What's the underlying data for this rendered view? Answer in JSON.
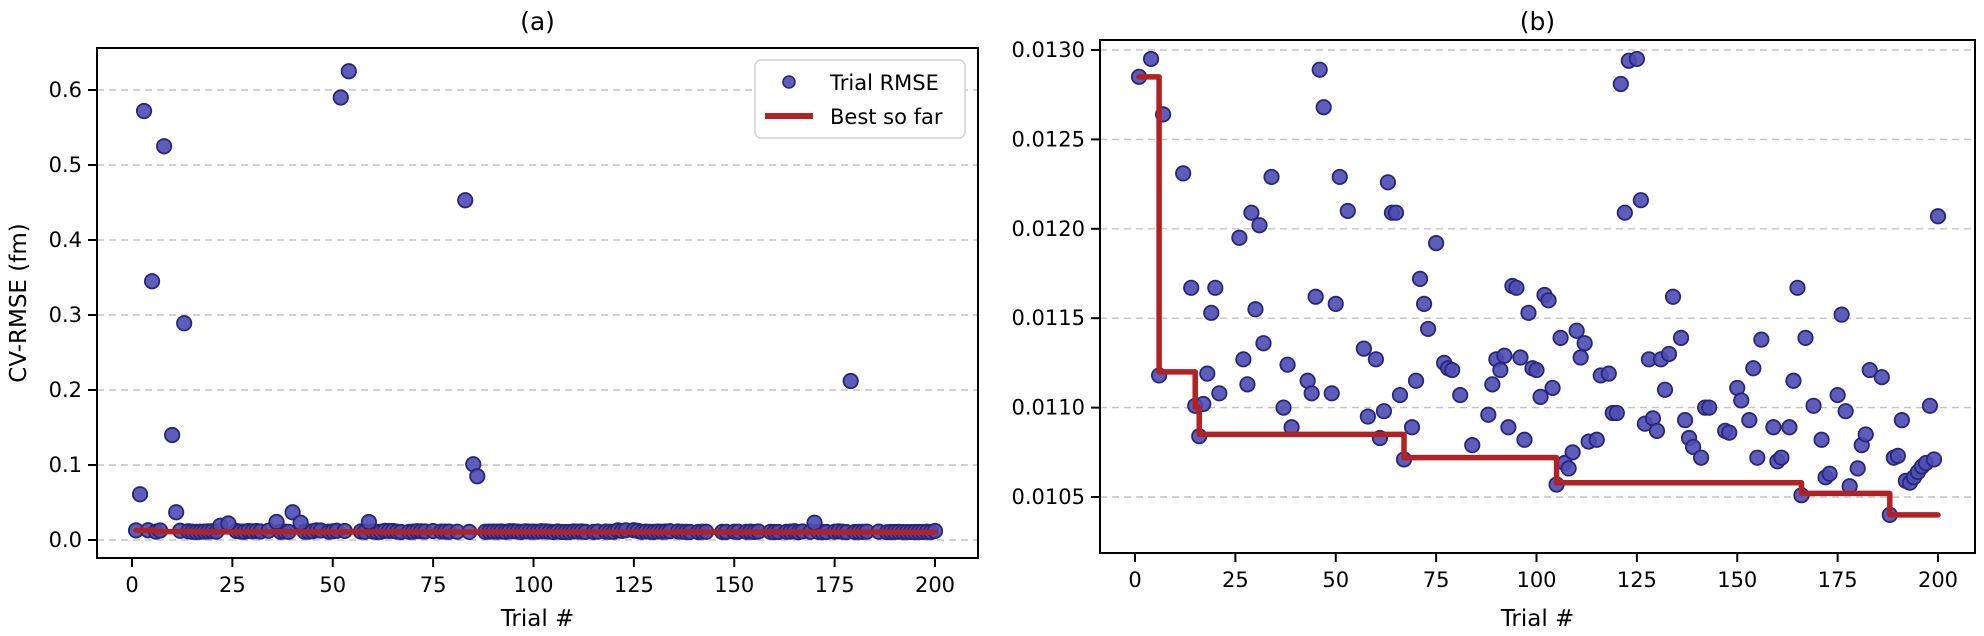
{
  "figure": {
    "background": "#ffffff",
    "legend": {
      "entries": [
        {
          "label": "Trial RMSE",
          "marker": "circle"
        },
        {
          "label": "Best so far",
          "marker": "line"
        }
      ],
      "position": "upper right"
    },
    "colors": {
      "scatter_fill": "#4d4db2",
      "scatter_edge": "#26267f",
      "best_line": "#b22222",
      "grid": "#c4c4c4",
      "spine": "#000000",
      "legend_border": "#d2d2d2",
      "legend_bg": "#ffffff"
    }
  },
  "chart_data": [
    {
      "id": "a",
      "type": "scatter",
      "title": "(a)",
      "xlabel": "Trial #",
      "ylabel": "CV-RMSE (fm)",
      "xlim": [
        -9,
        210
      ],
      "ylim": [
        -0.024,
        0.656
      ],
      "x_tick_values": [
        0,
        25,
        50,
        75,
        100,
        125,
        150,
        175,
        200
      ],
      "x_tick_labels": [
        "0",
        "25",
        "50",
        "75",
        "100",
        "125",
        "150",
        "175",
        "200"
      ],
      "y_tick_values": [
        0.0,
        0.1,
        0.2,
        0.3,
        0.4,
        0.5,
        0.6
      ],
      "y_tick_labels": [
        "0.0",
        "0.1",
        "0.2",
        "0.3",
        "0.4",
        "0.5",
        "0.6"
      ],
      "grid": "horizontal-dashed",
      "legend_visible": true,
      "note": "shows every trial: all points of panel b plus these larger-RMSE outliers",
      "outlier_points": [
        [
          2,
          0.061
        ],
        [
          3,
          0.572
        ],
        [
          5,
          0.345
        ],
        [
          8,
          0.525
        ],
        [
          10,
          0.14
        ],
        [
          11,
          0.037
        ],
        [
          13,
          0.289
        ],
        [
          22,
          0.019
        ],
        [
          24,
          0.022
        ],
        [
          36,
          0.024
        ],
        [
          40,
          0.037
        ],
        [
          42,
          0.023
        ],
        [
          52,
          0.59
        ],
        [
          54,
          0.625
        ],
        [
          59,
          0.024
        ],
        [
          83,
          0.453
        ],
        [
          85,
          0.101
        ],
        [
          86,
          0.085
        ],
        [
          170,
          0.023
        ],
        [
          179,
          0.212
        ]
      ]
    },
    {
      "id": "b",
      "type": "scatter",
      "title": "(b)",
      "xlabel": "Trial #",
      "ylabel": "",
      "xlim": [
        -9,
        210
      ],
      "ylim": [
        0.010187,
        0.013056
      ],
      "x_tick_values": [
        0,
        25,
        50,
        75,
        100,
        125,
        150,
        175,
        200
      ],
      "x_tick_labels": [
        "0",
        "25",
        "50",
        "75",
        "100",
        "125",
        "150",
        "175",
        "200"
      ],
      "y_tick_values": [
        0.0105,
        0.011,
        0.0115,
        0.012,
        0.0125,
        0.013
      ],
      "y_tick_labels": [
        "0.0105",
        "0.0110",
        "0.0115",
        "0.0120",
        "0.0125",
        "0.0130"
      ],
      "grid": "horizontal-dashed",
      "legend_visible": false,
      "trial_points": [
        [
          1,
          0.01285
        ],
        [
          4,
          0.01295
        ],
        [
          6,
          0.01118
        ],
        [
          7,
          0.01264
        ],
        [
          12,
          0.01231
        ],
        [
          14,
          0.01167
        ],
        [
          15,
          0.01101
        ],
        [
          16,
          0.01084
        ],
        [
          17,
          0.01102
        ],
        [
          18,
          0.01119
        ],
        [
          19,
          0.01153
        ],
        [
          20,
          0.01167
        ],
        [
          21,
          0.01108
        ],
        [
          26,
          0.01195
        ],
        [
          27,
          0.01127
        ],
        [
          28,
          0.01113
        ],
        [
          29,
          0.01209
        ],
        [
          30,
          0.01155
        ],
        [
          31,
          0.01202
        ],
        [
          32,
          0.01136
        ],
        [
          34,
          0.01229
        ],
        [
          37,
          0.011
        ],
        [
          38,
          0.01124
        ],
        [
          39,
          0.01089
        ],
        [
          43,
          0.01115
        ],
        [
          44,
          0.01108
        ],
        [
          45,
          0.01162
        ],
        [
          46,
          0.01289
        ],
        [
          47,
          0.01268
        ],
        [
          49,
          0.01108
        ],
        [
          50,
          0.01158
        ],
        [
          51,
          0.01229
        ],
        [
          53,
          0.0121
        ],
        [
          57,
          0.01133
        ],
        [
          58,
          0.01095
        ],
        [
          60,
          0.01127
        ],
        [
          61,
          0.01083
        ],
        [
          62,
          0.01098
        ],
        [
          63,
          0.01226
        ],
        [
          64,
          0.01209
        ],
        [
          65,
          0.01209
        ],
        [
          66,
          0.01107
        ],
        [
          67,
          0.01071
        ],
        [
          69,
          0.01089
        ],
        [
          70,
          0.01115
        ],
        [
          71,
          0.01172
        ],
        [
          72,
          0.01158
        ],
        [
          73,
          0.01144
        ],
        [
          75,
          0.01192
        ],
        [
          77,
          0.01125
        ],
        [
          78,
          0.01122
        ],
        [
          79,
          0.01121
        ],
        [
          81,
          0.01107
        ],
        [
          84,
          0.01079
        ],
        [
          88,
          0.01096
        ],
        [
          89,
          0.01113
        ],
        [
          90,
          0.01127
        ],
        [
          91,
          0.01121
        ],
        [
          92,
          0.01129
        ],
        [
          93,
          0.01089
        ],
        [
          94,
          0.01168
        ],
        [
          95,
          0.01167
        ],
        [
          96,
          0.01128
        ],
        [
          97,
          0.01082
        ],
        [
          98,
          0.01153
        ],
        [
          99,
          0.01122
        ],
        [
          100,
          0.01121
        ],
        [
          101,
          0.01106
        ],
        [
          102,
          0.01163
        ],
        [
          103,
          0.0116
        ],
        [
          104,
          0.01111
        ],
        [
          105,
          0.01057
        ],
        [
          106,
          0.01139
        ],
        [
          107,
          0.01069
        ],
        [
          108,
          0.01066
        ],
        [
          109,
          0.01075
        ],
        [
          110,
          0.01143
        ],
        [
          111,
          0.01128
        ],
        [
          112,
          0.01136
        ],
        [
          113,
          0.01081
        ],
        [
          115,
          0.01082
        ],
        [
          116,
          0.01118
        ],
        [
          118,
          0.01119
        ],
        [
          119,
          0.01097
        ],
        [
          120,
          0.01097
        ],
        [
          121,
          0.01281
        ],
        [
          122,
          0.01209
        ],
        [
          123,
          0.01294
        ],
        [
          125,
          0.01295
        ],
        [
          126,
          0.01216
        ],
        [
          127,
          0.01091
        ],
        [
          128,
          0.01127
        ],
        [
          129,
          0.01094
        ],
        [
          130,
          0.01087
        ],
        [
          131,
          0.01127
        ],
        [
          132,
          0.0111
        ],
        [
          133,
          0.0113
        ],
        [
          134,
          0.01162
        ],
        [
          136,
          0.01139
        ],
        [
          137,
          0.01093
        ],
        [
          138,
          0.01083
        ],
        [
          139,
          0.01078
        ],
        [
          141,
          0.01072
        ],
        [
          142,
          0.011
        ],
        [
          143,
          0.011
        ],
        [
          147,
          0.01087
        ],
        [
          148,
          0.01086
        ],
        [
          150,
          0.01111
        ],
        [
          151,
          0.01104
        ],
        [
          153,
          0.01093
        ],
        [
          154,
          0.01122
        ],
        [
          155,
          0.01072
        ],
        [
          156,
          0.01138
        ],
        [
          159,
          0.01089
        ],
        [
          160,
          0.0107
        ],
        [
          161,
          0.01072
        ],
        [
          163,
          0.01089
        ],
        [
          164,
          0.01115
        ],
        [
          165,
          0.01167
        ],
        [
          166,
          0.01051
        ],
        [
          167,
          0.01139
        ],
        [
          169,
          0.01101
        ],
        [
          171,
          0.01082
        ],
        [
          172,
          0.01061
        ],
        [
          173,
          0.01063
        ],
        [
          175,
          0.01107
        ],
        [
          176,
          0.01152
        ],
        [
          177,
          0.01098
        ],
        [
          178,
          0.01056
        ],
        [
          180,
          0.01066
        ],
        [
          181,
          0.01079
        ],
        [
          182,
          0.01085
        ],
        [
          183,
          0.01121
        ],
        [
          186,
          0.01117
        ],
        [
          188,
          0.0104
        ],
        [
          189,
          0.01072
        ],
        [
          190,
          0.01073
        ],
        [
          191,
          0.01093
        ],
        [
          192,
          0.01059
        ],
        [
          193,
          0.01058
        ],
        [
          194,
          0.01061
        ],
        [
          195,
          0.01064
        ],
        [
          196,
          0.01067
        ],
        [
          197,
          0.01069
        ],
        [
          198,
          0.01101
        ],
        [
          199,
          0.01071
        ],
        [
          200,
          0.01207
        ]
      ],
      "best_so_far_steps": [
        [
          1,
          0.01285
        ],
        [
          6,
          0.0112
        ],
        [
          15,
          0.011
        ],
        [
          16,
          0.01085
        ],
        [
          67,
          0.01072
        ],
        [
          105,
          0.01058
        ],
        [
          166,
          0.01052
        ],
        [
          188,
          0.0104
        ],
        [
          200,
          0.0104
        ]
      ]
    }
  ]
}
